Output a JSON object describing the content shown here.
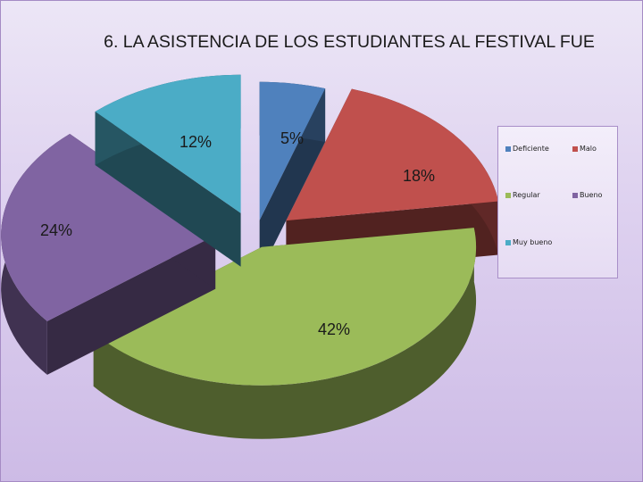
{
  "slide": {
    "title": "6. LA ASISTENCIA DE LOS ESTUDIANTES AL FESTIVAL FUE"
  },
  "chart_data": {
    "type": "pie",
    "title": "6. LA ASISTENCIA DE LOS ESTUDIANTES AL FESTIVAL FUE",
    "categories": [
      "Deficiente",
      "Malo",
      "Regular",
      "Bueno",
      "Muy bueno"
    ],
    "values": [
      5,
      18,
      42,
      24,
      12
    ],
    "data_labels": [
      "5%",
      "18%",
      "42%",
      "24%",
      "12%"
    ],
    "colors": [
      "#4f81bd",
      "#c0504d",
      "#9bbb59",
      "#8064a2",
      "#4bacc6"
    ],
    "legend_position": "right",
    "exploded": true,
    "three_d": true
  }
}
